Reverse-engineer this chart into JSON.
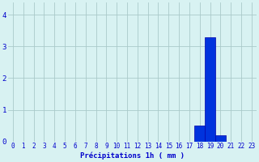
{
  "hours": [
    0,
    1,
    2,
    3,
    4,
    5,
    6,
    7,
    8,
    9,
    10,
    11,
    12,
    13,
    14,
    15,
    16,
    17,
    18,
    19,
    20,
    21,
    22,
    23
  ],
  "values": [
    0,
    0,
    0,
    0,
    0,
    0,
    0,
    0,
    0,
    0,
    0,
    0,
    0,
    0,
    0,
    0,
    0,
    0,
    0.5,
    3.3,
    0.2,
    0,
    0,
    0
  ],
  "bar_color": "#0033dd",
  "bar_edge_color": "#0000aa",
  "background_color": "#d8f2f2",
  "grid_color": "#aacaca",
  "xlabel": "Précipitations 1h ( mm )",
  "xlabel_color": "#0000cc",
  "tick_color": "#0000cc",
  "ylim": [
    0,
    4.4
  ],
  "yticks": [
    0,
    1,
    2,
    3,
    4
  ],
  "xlim": [
    -0.5,
    23.5
  ],
  "tick_fontsize": 5.5,
  "ylabel_fontsize": 6.5
}
